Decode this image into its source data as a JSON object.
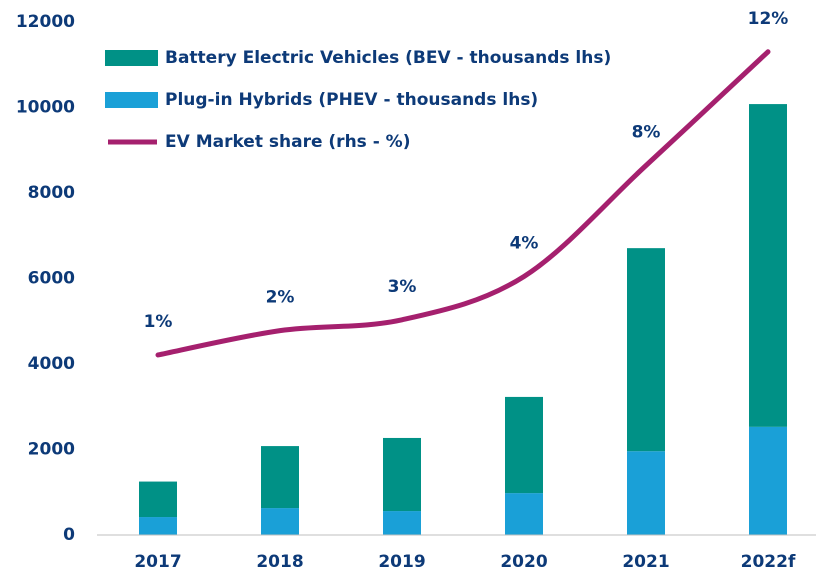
{
  "chart_data": {
    "type": "bar",
    "stacked": true,
    "categories": [
      "2017",
      "2018",
      "2019",
      "2020",
      "2021",
      "2022f"
    ],
    "series": [
      {
        "name": "Plug-in Hybrids (PHEV - thousands lhs)",
        "type": "bar",
        "color": "#1aa0d7",
        "values": [
          420,
          630,
          560,
          980,
          1960,
          2530
        ]
      },
      {
        "name": "Battery Electric Vehicles (BEV - thousands lhs)",
        "type": "bar",
        "color": "#009186",
        "values": [
          830,
          1450,
          1710,
          2250,
          4750,
          7550
        ]
      },
      {
        "name": "EV Market share (rhs - %)",
        "type": "line",
        "axis": "y2",
        "color": "#a5206e",
        "values": [
          1.2,
          2.1,
          2.5,
          4.1,
          8.2,
          12.4
        ],
        "value_labels": [
          "1%",
          "2%",
          "3%",
          "4%",
          "8%",
          "12%"
        ]
      }
    ],
    "legend_order": [
      1,
      0,
      2
    ],
    "ylim": [
      0,
      12000
    ],
    "yticks": [
      0,
      2000,
      4000,
      6000,
      8000,
      10000,
      12000
    ],
    "y2lim": [
      -5.45,
      13.5
    ],
    "legend": "upper left",
    "grid": false
  }
}
